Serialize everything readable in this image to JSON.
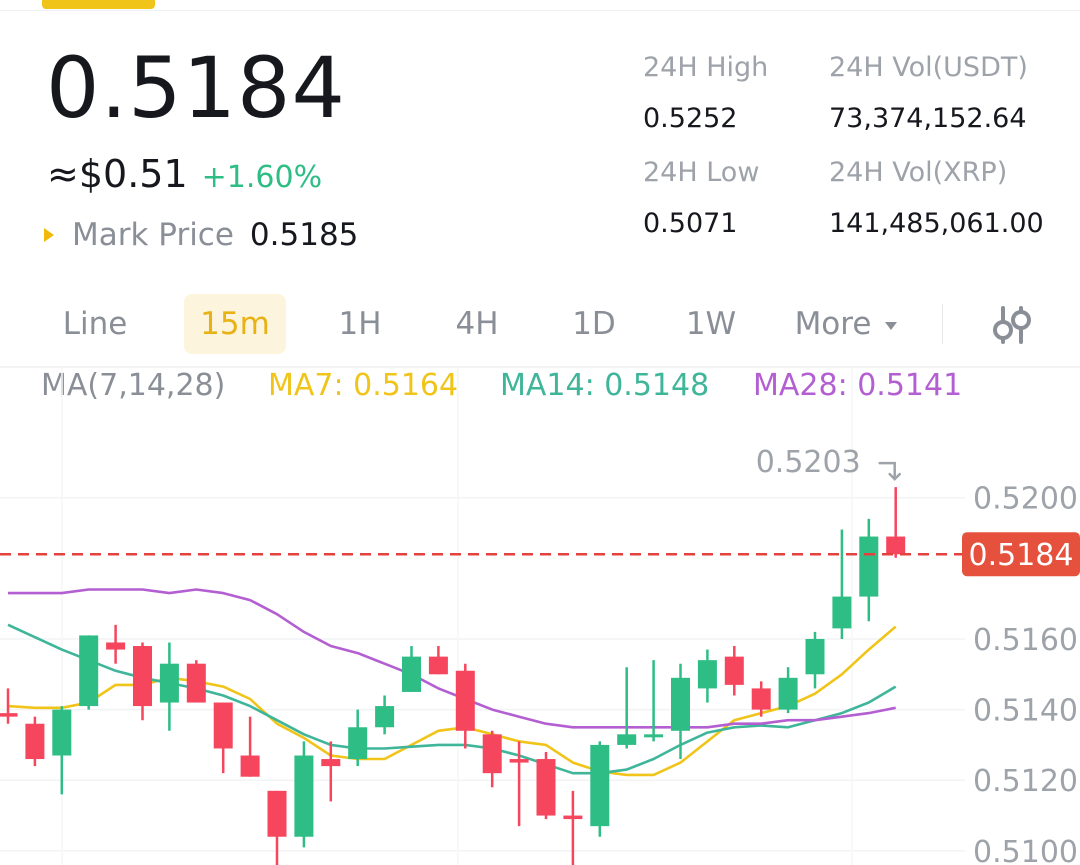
{
  "ticker": {
    "last_price": "0.5184",
    "fiat_price": "≈$0.51",
    "change_pct": "+1.60%",
    "mark_label": "Mark Price",
    "mark_value": "0.5185"
  },
  "stats": {
    "high_label": "24H High",
    "high_value": "0.5252",
    "low_label": "24H Low",
    "low_value": "0.5071",
    "vol_usdt_label": "24H Vol(USDT)",
    "vol_usdt_value": "73,374,152.64",
    "vol_xrp_label": "24H Vol(XRP)",
    "vol_xrp_value": "141,485,061.00"
  },
  "tabs": {
    "line": "Line",
    "m15": "15m",
    "h1": "1H",
    "h4": "4H",
    "d1": "1D",
    "w1": "1W",
    "more": "More",
    "active": "15m"
  },
  "ma_legend": {
    "label": "MA(7,14,28)",
    "ma7": "MA7: 0.5164",
    "ma14": "MA14: 0.5148",
    "ma28": "MA28: 0.5141"
  },
  "colors": {
    "up": "#2ebd85",
    "down": "#f6465d",
    "accent": "#f0b90b",
    "ma7": "#f0c419",
    "ma14": "#3fb59a",
    "ma28": "#b35fd1"
  },
  "chart_data": {
    "type": "candlestick",
    "ylim": [
      0.5096,
      0.5222
    ],
    "y_ticks": [
      "0.5200",
      "0.5160",
      "0.5140",
      "0.5120",
      "0.5100"
    ],
    "current_price": "0.5184",
    "high_annotation": "0.5203",
    "candles": [
      {
        "o": 0.5139,
        "h": 0.5146,
        "l": 0.5136,
        "c": 0.5138
      },
      {
        "o": 0.5136,
        "h": 0.5138,
        "l": 0.5124,
        "c": 0.5126
      },
      {
        "o": 0.5127,
        "h": 0.5141,
        "l": 0.5116,
        "c": 0.514
      },
      {
        "o": 0.5141,
        "h": 0.5161,
        "l": 0.514,
        "c": 0.5161
      },
      {
        "o": 0.5159,
        "h": 0.5164,
        "l": 0.5153,
        "c": 0.5157
      },
      {
        "o": 0.5158,
        "h": 0.5159,
        "l": 0.5137,
        "c": 0.5141
      },
      {
        "o": 0.5142,
        "h": 0.5159,
        "l": 0.5134,
        "c": 0.5153
      },
      {
        "o": 0.5153,
        "h": 0.5154,
        "l": 0.5142,
        "c": 0.5142
      },
      {
        "o": 0.5142,
        "h": 0.5142,
        "l": 0.5122,
        "c": 0.5129
      },
      {
        "o": 0.5127,
        "h": 0.5138,
        "l": 0.5121,
        "c": 0.5121
      },
      {
        "o": 0.5117,
        "h": 0.5117,
        "l": 0.5095,
        "c": 0.5104
      },
      {
        "o": 0.5104,
        "h": 0.5131,
        "l": 0.5101,
        "c": 0.5127
      },
      {
        "o": 0.5126,
        "h": 0.5131,
        "l": 0.5114,
        "c": 0.5124
      },
      {
        "o": 0.5126,
        "h": 0.514,
        "l": 0.5124,
        "c": 0.5135
      },
      {
        "o": 0.5135,
        "h": 0.5144,
        "l": 0.5133,
        "c": 0.5141
      },
      {
        "o": 0.5145,
        "h": 0.5158,
        "l": 0.5145,
        "c": 0.5155
      },
      {
        "o": 0.5155,
        "h": 0.5158,
        "l": 0.515,
        "c": 0.515
      },
      {
        "o": 0.5151,
        "h": 0.5153,
        "l": 0.5129,
        "c": 0.5134
      },
      {
        "o": 0.5133,
        "h": 0.5134,
        "l": 0.5118,
        "c": 0.5122
      },
      {
        "o": 0.5126,
        "h": 0.5131,
        "l": 0.5107,
        "c": 0.5125
      },
      {
        "o": 0.5126,
        "h": 0.5128,
        "l": 0.5109,
        "c": 0.511
      },
      {
        "o": 0.511,
        "h": 0.5117,
        "l": 0.5096,
        "c": 0.5109
      },
      {
        "o": 0.5107,
        "h": 0.5131,
        "l": 0.5104,
        "c": 0.513
      },
      {
        "o": 0.513,
        "h": 0.5152,
        "l": 0.5129,
        "c": 0.5133
      },
      {
        "o": 0.5133,
        "h": 0.5154,
        "l": 0.5131,
        "c": 0.5133
      },
      {
        "o": 0.5134,
        "h": 0.5153,
        "l": 0.5126,
        "c": 0.5149
      },
      {
        "o": 0.5146,
        "h": 0.5157,
        "l": 0.5142,
        "c": 0.5154
      },
      {
        "o": 0.5155,
        "h": 0.5158,
        "l": 0.5144,
        "c": 0.5147
      },
      {
        "o": 0.5146,
        "h": 0.5148,
        "l": 0.5138,
        "c": 0.514
      },
      {
        "o": 0.514,
        "h": 0.5152,
        "l": 0.5139,
        "c": 0.5149
      },
      {
        "o": 0.515,
        "h": 0.5162,
        "l": 0.5146,
        "c": 0.516
      },
      {
        "o": 0.5163,
        "h": 0.5191,
        "l": 0.516,
        "c": 0.5172
      },
      {
        "o": 0.5172,
        "h": 0.5194,
        "l": 0.5165,
        "c": 0.5189
      },
      {
        "o": 0.5189,
        "h": 0.5203,
        "l": 0.5183,
        "c": 0.5184
      }
    ],
    "series": [
      {
        "name": "MA7",
        "values": [
          0.5141,
          0.51405,
          0.51405,
          0.5142,
          0.5147,
          0.5147,
          0.5149,
          0.5148,
          0.51465,
          0.5143,
          0.5136,
          0.5132,
          0.5127,
          0.5126,
          0.5126,
          0.513,
          0.5134,
          0.5135,
          0.5133,
          0.5131,
          0.513,
          0.5125,
          0.51225,
          0.51215,
          0.51215,
          0.5125,
          0.5131,
          0.5137,
          0.5139,
          0.5141,
          0.51445,
          0.515,
          0.5157,
          0.51635
        ]
      },
      {
        "name": "MA14",
        "values": [
          0.5164,
          0.51605,
          0.5157,
          0.5154,
          0.5151,
          0.5149,
          0.51475,
          0.5146,
          0.5144,
          0.5141,
          0.5137,
          0.5133,
          0.513,
          0.5129,
          0.5129,
          0.51295,
          0.513,
          0.513,
          0.5129,
          0.5127,
          0.51245,
          0.5122,
          0.5122,
          0.5123,
          0.5126,
          0.513,
          0.51335,
          0.5135,
          0.51355,
          0.5135,
          0.5137,
          0.5139,
          0.5142,
          0.51465
        ]
      },
      {
        "name": "MA28",
        "values": [
          0.5173,
          0.5173,
          0.5173,
          0.5174,
          0.5174,
          0.5174,
          0.5173,
          0.5174,
          0.5173,
          0.5171,
          0.5167,
          0.5162,
          0.5158,
          0.5156,
          0.5153,
          0.515,
          0.5146,
          0.5143,
          0.514,
          0.5138,
          0.5136,
          0.5135,
          0.5135,
          0.5135,
          0.5135,
          0.5135,
          0.5135,
          0.5136,
          0.5136,
          0.5137,
          0.5137,
          0.5138,
          0.5139,
          0.51405
        ]
      }
    ]
  }
}
